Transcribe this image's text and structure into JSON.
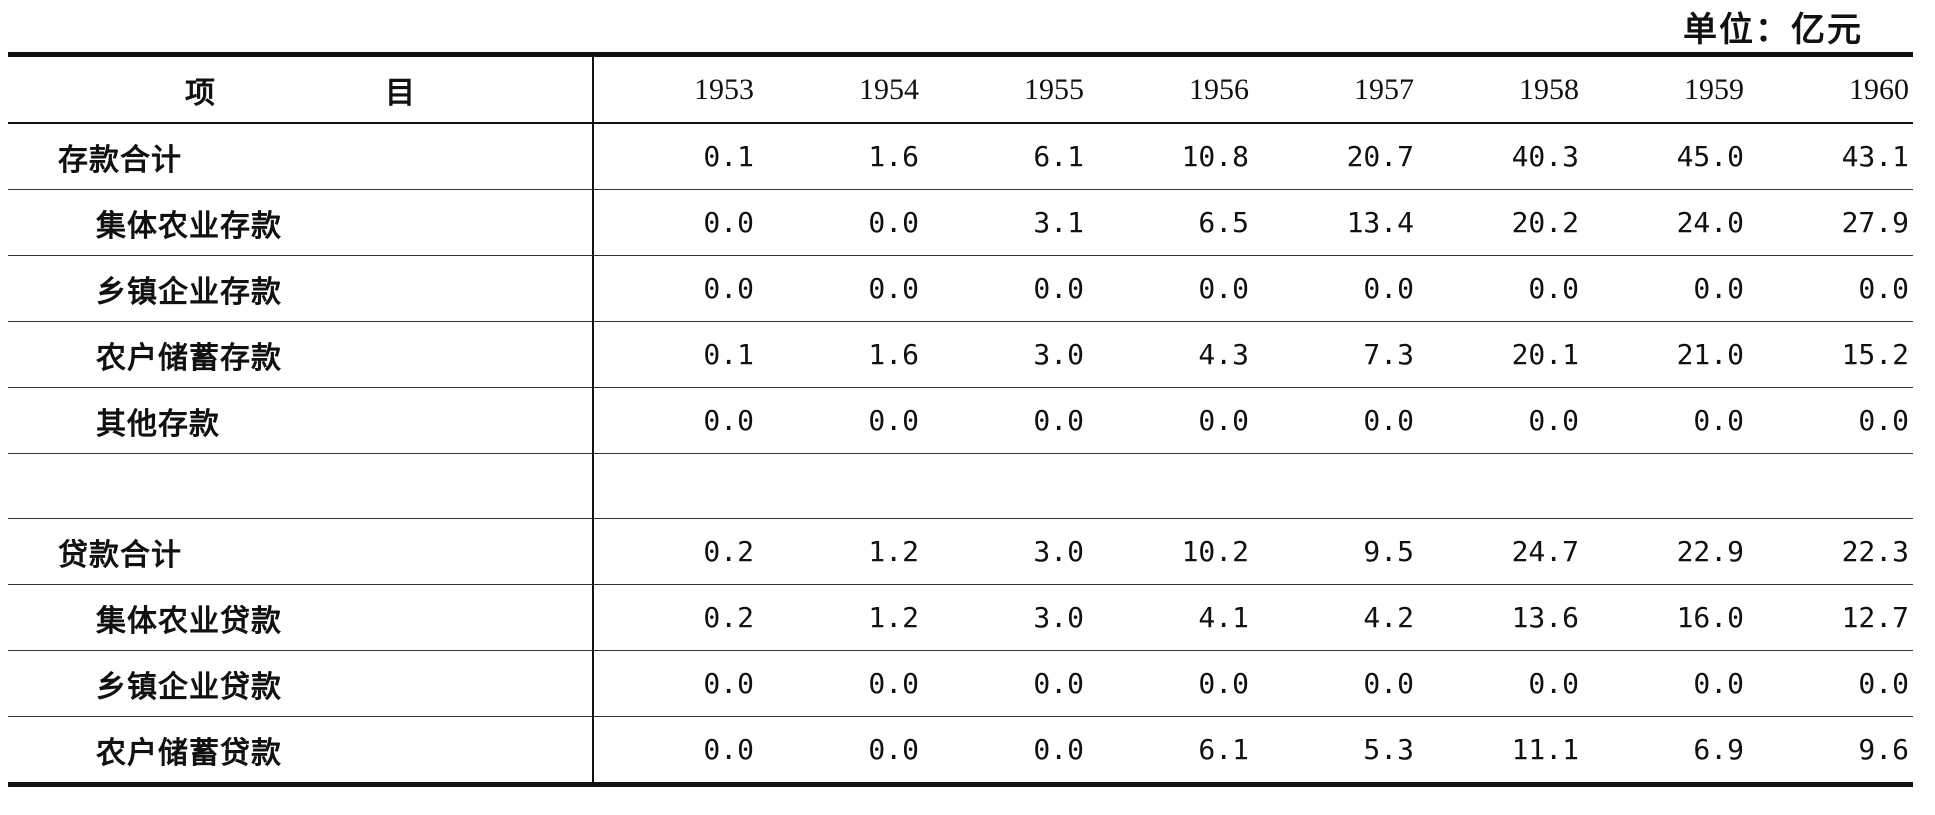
{
  "unit_label": "单位：亿元",
  "header": {
    "item": "项目",
    "years": [
      "1953",
      "1954",
      "1955",
      "1956",
      "1957",
      "1958",
      "1959",
      "1960"
    ]
  },
  "rows": [
    {
      "label": "存款合计",
      "level": 1,
      "values": [
        "0.1",
        "1.6",
        "6.1",
        "10.8",
        "20.7",
        "40.3",
        "45.0",
        "43.1"
      ]
    },
    {
      "label": "集体农业存款",
      "level": 2,
      "values": [
        "0.0",
        "0.0",
        "3.1",
        "6.5",
        "13.4",
        "20.2",
        "24.0",
        "27.9"
      ]
    },
    {
      "label": "乡镇企业存款",
      "level": 2,
      "values": [
        "0.0",
        "0.0",
        "0.0",
        "0.0",
        "0.0",
        "0.0",
        "0.0",
        "0.0"
      ]
    },
    {
      "label": "农户储蓄存款",
      "level": 2,
      "values": [
        "0.1",
        "1.6",
        "3.0",
        "4.3",
        "7.3",
        "20.1",
        "21.0",
        "15.2"
      ]
    },
    {
      "label": "其他存款",
      "level": 2,
      "values": [
        "0.0",
        "0.0",
        "0.0",
        "0.0",
        "0.0",
        "0.0",
        "0.0",
        "0.0"
      ]
    },
    {
      "label": "",
      "level": 0,
      "values": [
        "",
        "",
        "",
        "",
        "",
        "",
        "",
        ""
      ]
    },
    {
      "label": "贷款合计",
      "level": 1,
      "values": [
        "0.2",
        "1.2",
        "3.0",
        "10.2",
        "9.5",
        "24.7",
        "22.9",
        "22.3"
      ]
    },
    {
      "label": "集体农业贷款",
      "level": 2,
      "values": [
        "0.2",
        "1.2",
        "3.0",
        "4.1",
        "4.2",
        "13.6",
        "16.0",
        "12.7"
      ]
    },
    {
      "label": "乡镇企业贷款",
      "level": 2,
      "values": [
        "0.0",
        "0.0",
        "0.0",
        "0.0",
        "0.0",
        "0.0",
        "0.0",
        "0.0"
      ]
    },
    {
      "label": "农户储蓄贷款",
      "level": 2,
      "values": [
        "0.0",
        "0.0",
        "0.0",
        "6.1",
        "5.3",
        "11.1",
        "6.9",
        "9.6"
      ]
    }
  ]
}
